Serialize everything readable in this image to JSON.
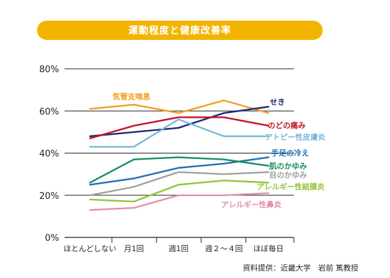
{
  "colors": {
    "title_bg": "#f2b400",
    "axis": "#222222",
    "grid": "#222222"
  },
  "source_text": "資料提供：近畿大学　岩前 篤教授",
  "chart_data": {
    "type": "line",
    "title": "運動程度と健康改善率",
    "categories": [
      "ほとんどしない",
      "月1回",
      "週1回",
      "週２～４回",
      "ほぼ毎日"
    ],
    "ylim": [
      0,
      80
    ],
    "yticks": [
      "0%",
      "20%",
      "40%",
      "60%",
      "80%"
    ],
    "grid": "horizontal",
    "series": [
      {
        "name": "気管支喘息",
        "color": "#f0a020",
        "values": [
          61,
          63,
          59,
          65,
          59
        ]
      },
      {
        "name": "せき",
        "color": "#1e2a7a",
        "values": [
          48,
          50,
          52,
          59,
          62
        ]
      },
      {
        "name": "のどの痛み",
        "color": "#c0142a",
        "values": [
          47,
          53,
          57,
          57,
          53
        ]
      },
      {
        "name": "アトピー性皮膚炎",
        "color": "#7bb8d8",
        "values": [
          43,
          43,
          56,
          48,
          48
        ]
      },
      {
        "name": "手足の冷え",
        "color": "#1e70b8",
        "values": [
          25,
          28,
          33,
          35,
          38
        ]
      },
      {
        "name": "肌のかゆみ",
        "color": "#16915a",
        "values": [
          26,
          37,
          38,
          37,
          34
        ]
      },
      {
        "name": "目のかゆみ",
        "color": "#a0a0a0",
        "values": [
          20,
          24,
          31,
          30,
          31
        ]
      },
      {
        "name": "アレルギー性結膜炎",
        "color": "#94c43a",
        "values": [
          18,
          17,
          25,
          27,
          26
        ]
      },
      {
        "name": "アレルギー性鼻炎",
        "color": "#e090b0",
        "values": [
          13,
          14,
          20,
          20,
          21
        ]
      }
    ]
  }
}
